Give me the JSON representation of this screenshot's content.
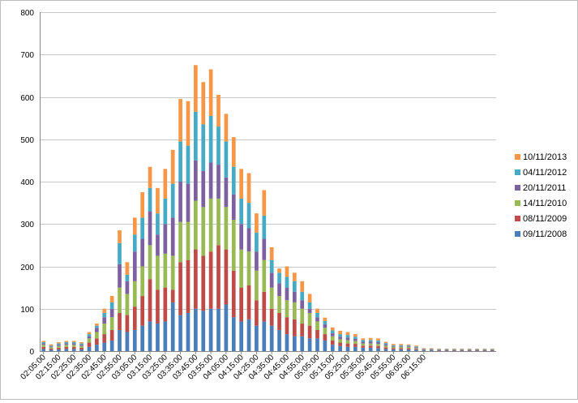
{
  "chart_data": {
    "type": "bar",
    "stacked": true,
    "grid": true,
    "legend": "right",
    "title": "",
    "xlabel": "",
    "ylabel": "",
    "ylim": [
      0,
      800
    ],
    "yticks": [
      0,
      100,
      200,
      300,
      400,
      500,
      600,
      700,
      800
    ],
    "categories": [
      "02:05:00",
      "02:10:00",
      "02:15:00",
      "02:20:00",
      "02:25:00",
      "02:30:00",
      "02:35:00",
      "02:40:00",
      "02:45:00",
      "02:50:00",
      "02:55:00",
      "03:00:00",
      "03:05:00",
      "03:10:00",
      "03:15:00",
      "03:20:00",
      "03:25:00",
      "03:30:00",
      "03:35:00",
      "03:40:00",
      "03:45:00",
      "03:50:00",
      "03:55:00",
      "04:00:00",
      "04:05:00",
      "04:10:00",
      "04:15:00",
      "04:20:00",
      "04:25:00",
      "04:30:00",
      "04:35:00",
      "04:40:00",
      "04:45:00",
      "04:50:00",
      "04:55:00",
      "05:00:00",
      "05:05:00",
      "05:10:00",
      "05:15:00",
      "05:20:00",
      "05:25:00",
      "05:30:00",
      "05:35:00",
      "05:40:00",
      "05:45:00",
      "05:50:00",
      "05:55:00",
      "06:00:00",
      "06:05:00",
      "06:10:00",
      "06:15:00",
      "06:20:00",
      "06:25:00",
      "06:30:00",
      "06:35:00",
      "06:40:00",
      "06:45:00",
      "06:50:00",
      "06:55:00",
      "07:00:00"
    ],
    "tick_labels": [
      "02:05:00",
      "02:15:00",
      "02:25:00",
      "02:35:00",
      "02:45:00",
      "02:55:00",
      "03:05:00",
      "03:15:00",
      "03:25:00",
      "03:35:00",
      "03:45:00",
      "03:55:00",
      "04:05:00",
      "04:15:00",
      "04:25:00",
      "04:35:00",
      "04:45:00",
      "04:55:00",
      "05:05:00",
      "05:15:00",
      "05:25:00",
      "05:35:00",
      "05:45:00",
      "05:55:00",
      "06:05:00",
      "06:15:00"
    ],
    "series": [
      {
        "name": "09/11/2008",
        "color": "#4a7ebb",
        "values": [
          5,
          3,
          4,
          5,
          5,
          4,
          10,
          15,
          20,
          25,
          50,
          45,
          50,
          60,
          70,
          65,
          70,
          115,
          85,
          90,
          100,
          95,
          100,
          100,
          110,
          80,
          70,
          75,
          60,
          70,
          60,
          50,
          40,
          35,
          35,
          30,
          30,
          25,
          15,
          12,
          10,
          10,
          8,
          8,
          7,
          5,
          4,
          4,
          4,
          3,
          2,
          2,
          1,
          1,
          1,
          1,
          1,
          1,
          1,
          1
        ]
      },
      {
        "name": "08/11/2009",
        "color": "#be4b48",
        "values": [
          5,
          3,
          4,
          5,
          5,
          4,
          10,
          15,
          20,
          25,
          40,
          40,
          55,
          70,
          100,
          80,
          80,
          30,
          125,
          125,
          140,
          130,
          135,
          150,
          130,
          110,
          80,
          80,
          60,
          70,
          40,
          40,
          40,
          40,
          30,
          30,
          20,
          15,
          10,
          8,
          8,
          7,
          5,
          5,
          5,
          4,
          3,
          3,
          3,
          2,
          1,
          1,
          1,
          1,
          1,
          1,
          1,
          1,
          1,
          1
        ]
      },
      {
        "name": "14/11/2010",
        "color": "#98b954",
        "values": [
          5,
          3,
          4,
          5,
          5,
          4,
          10,
          15,
          25,
          30,
          60,
          50,
          60,
          70,
          80,
          80,
          80,
          80,
          95,
          90,
          115,
          115,
          125,
          110,
          100,
          120,
          90,
          80,
          70,
          75,
          50,
          40,
          40,
          40,
          35,
          30,
          20,
          15,
          10,
          8,
          8,
          7,
          5,
          5,
          5,
          4,
          3,
          3,
          3,
          2,
          1,
          1,
          1,
          1,
          1,
          1,
          1,
          1,
          1,
          1
        ]
      },
      {
        "name": "20/11/2011",
        "color": "#7d60a0",
        "values": [
          3,
          2,
          3,
          3,
          3,
          3,
          5,
          10,
          15,
          20,
          55,
          30,
          70,
          65,
          80,
          50,
          70,
          90,
          95,
          90,
          95,
          85,
          85,
          80,
          70,
          60,
          60,
          55,
          45,
          50,
          35,
          30,
          30,
          25,
          20,
          10,
          10,
          8,
          7,
          6,
          6,
          5,
          4,
          4,
          4,
          3,
          2,
          2,
          2,
          2,
          1,
          1,
          1,
          1,
          1,
          1,
          1,
          1,
          1,
          1
        ]
      },
      {
        "name": "04/11/2012",
        "color": "#46aac5",
        "values": [
          3,
          2,
          3,
          3,
          3,
          3,
          5,
          5,
          10,
          15,
          50,
          15,
          40,
          50,
          55,
          50,
          60,
          80,
          95,
          90,
          115,
          110,
          110,
          90,
          85,
          65,
          60,
          60,
          45,
          55,
          30,
          25,
          25,
          25,
          20,
          15,
          10,
          8,
          7,
          6,
          6,
          5,
          4,
          4,
          4,
          3,
          2,
          2,
          2,
          2,
          1,
          1,
          1,
          1,
          1,
          1,
          1,
          1,
          1,
          1
        ]
      },
      {
        "name": "10/11/2013",
        "color": "#f79646",
        "values": [
          3,
          3,
          3,
          3,
          3,
          3,
          5,
          5,
          10,
          15,
          30,
          30,
          40,
          60,
          50,
          60,
          70,
          80,
          100,
          105,
          110,
          100,
          110,
          75,
          65,
          70,
          70,
          70,
          45,
          60,
          30,
          10,
          25,
          20,
          25,
          20,
          10,
          8,
          7,
          8,
          7,
          6,
          4,
          5,
          5,
          3,
          3,
          3,
          2,
          2,
          1,
          1,
          1,
          1,
          1,
          1,
          1,
          1,
          1,
          1
        ]
      }
    ]
  }
}
